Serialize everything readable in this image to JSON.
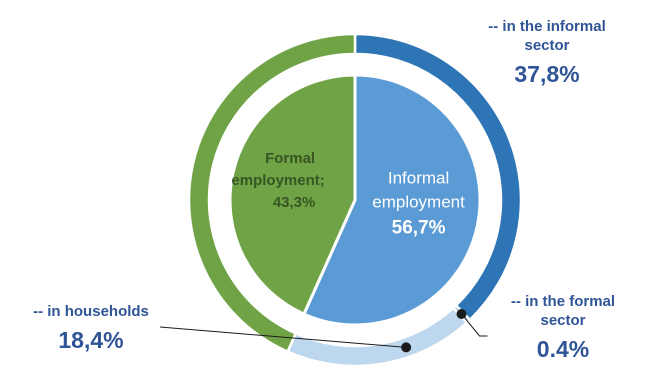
{
  "chart_data": {
    "type": "pie",
    "subtype": "nested-donut",
    "inner": [
      {
        "name": "Formal employment",
        "label_lines": [
          "Formal",
          "employment;"
        ],
        "value_label": "43,3%",
        "value": 43.3,
        "color": "#70a346",
        "text_color": "#375623"
      },
      {
        "name": "Informal employment",
        "label_lines": [
          "Informal",
          "employment"
        ],
        "value_label": "56,7%",
        "value": 56.7,
        "color": "#5b9bd5",
        "text_color": "#ffffff"
      }
    ],
    "outer": [
      {
        "name": "-- in the informal sector",
        "label_lines": [
          "-- in the informal",
          "sector"
        ],
        "value_label": "37,8%",
        "value": 37.8,
        "color": "#2e75b6"
      },
      {
        "name": "-- in the formal sector",
        "label_lines": [
          "-- in the formal",
          "sector"
        ],
        "value_label": "0.4%",
        "value": 0.4,
        "color": "#9dc3e6"
      },
      {
        "name": "-- in households",
        "label_lines": [
          "-- in households"
        ],
        "value_label": "18,4%",
        "value": 18.4,
        "color": "#bdd7ee"
      },
      {
        "name": "Formal employment",
        "value": 43.3,
        "color": "#70a346"
      }
    ],
    "label_color": "#2f5597"
  }
}
